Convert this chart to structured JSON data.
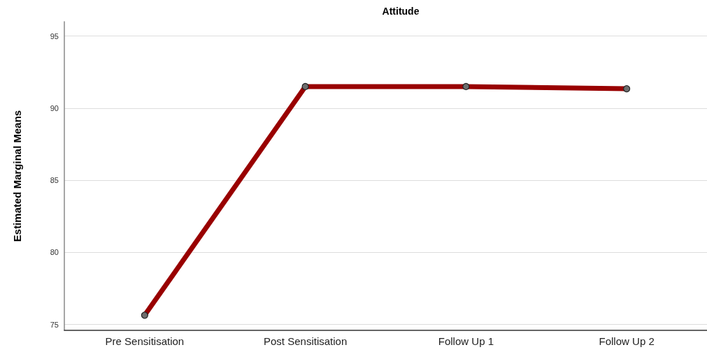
{
  "chart_data": {
    "type": "line",
    "title": "Attitude",
    "ylabel": "Estimated Marginal Means",
    "categories": [
      "Pre Sensitisation",
      "Post Sensitisation",
      "Follow Up 1",
      "Follow Up 2"
    ],
    "series": [
      {
        "color": "#990000",
        "values": [
          75.65,
          91.5,
          91.5,
          91.35
        ]
      }
    ],
    "ylim": [
      74.6,
      96
    ],
    "yticks": [
      75,
      80,
      85,
      90,
      95
    ],
    "grid": "y",
    "marker": "circle",
    "line_style": "solid"
  }
}
